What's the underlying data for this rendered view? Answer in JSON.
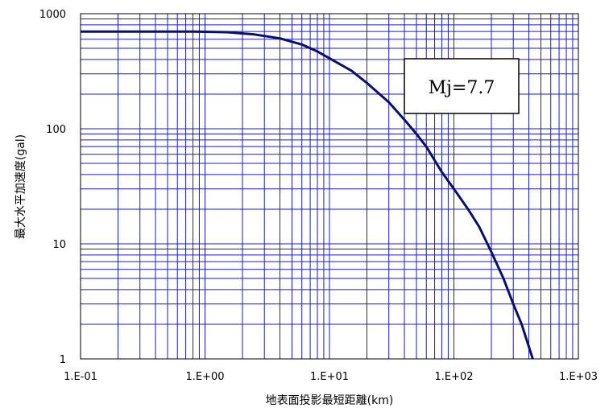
{
  "chart_data": {
    "type": "line",
    "xscale": "log",
    "yscale": "log",
    "xlim": [
      0.1,
      1000
    ],
    "ylim": [
      1,
      1000
    ],
    "grid": true,
    "xlabel": "地表面投影最短距離(km)",
    "ylabel": "最大水平加速度(gal)",
    "x_tick_labels": [
      "1.E-01",
      "1.E+00",
      "1.E+01",
      "1.E+02",
      "1.E+03"
    ],
    "y_tick_labels": [
      "1",
      "10",
      "100",
      "1000"
    ],
    "annotation": "Mj=7.7",
    "colors": {
      "line": "#0d0d6e",
      "grid": "#1a1ad6",
      "frame": "#000000"
    },
    "series": [
      {
        "x": [
          0.1,
          0.3,
          0.8,
          1.5,
          2.5,
          4,
          6,
          8,
          10,
          15,
          20,
          30,
          40,
          50,
          60,
          80,
          100,
          130,
          160,
          200,
          250,
          300,
          350,
          430
        ],
        "y": [
          700,
          700,
          700,
          690,
          660,
          610,
          540,
          470,
          410,
          320,
          250,
          170,
          120,
          90,
          70,
          42,
          30,
          20,
          14,
          8.5,
          5,
          3,
          2,
          1
        ]
      }
    ]
  }
}
